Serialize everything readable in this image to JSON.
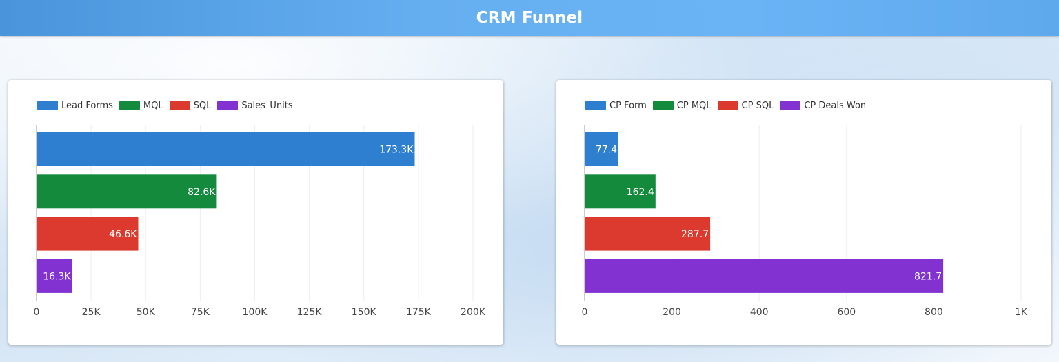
{
  "header": {
    "title": "CRM Funnel"
  },
  "chart_data": [
    {
      "type": "bar",
      "orientation": "horizontal",
      "categories": [
        "Lead Forms",
        "MQL",
        "SQL",
        "Sales_Units"
      ],
      "values": [
        173300,
        82600,
        46600,
        16300
      ],
      "labels": [
        "173.3K",
        "82.6K",
        "46.6K",
        "16.3K"
      ],
      "colors": [
        "#2e7fd0",
        "#138a3c",
        "#dc3a2e",
        "#8232d0"
      ],
      "xlim": [
        0,
        200000
      ],
      "ticks": [
        0,
        25000,
        50000,
        75000,
        100000,
        125000,
        150000,
        175000,
        200000
      ],
      "tick_labels": [
        "0",
        "25K",
        "50K",
        "75K",
        "100K",
        "125K",
        "150K",
        "175K",
        "200K"
      ],
      "legend_position": "top-left",
      "title": ""
    },
    {
      "type": "bar",
      "orientation": "horizontal",
      "categories": [
        "CP Form",
        "CP MQL",
        "CP SQL",
        "CP Deals Won"
      ],
      "values": [
        77.4,
        162.4,
        287.7,
        821.7
      ],
      "labels": [
        "77.4",
        "162.4",
        "287.7",
        "821.7"
      ],
      "colors": [
        "#2e7fd0",
        "#138a3c",
        "#dc3a2e",
        "#8232d0"
      ],
      "xlim": [
        0,
        1000
      ],
      "ticks": [
        0,
        200,
        400,
        600,
        800,
        1000
      ],
      "tick_labels": [
        "0",
        "200",
        "400",
        "600",
        "800",
        "1K"
      ],
      "legend_position": "top-left",
      "title": ""
    }
  ]
}
